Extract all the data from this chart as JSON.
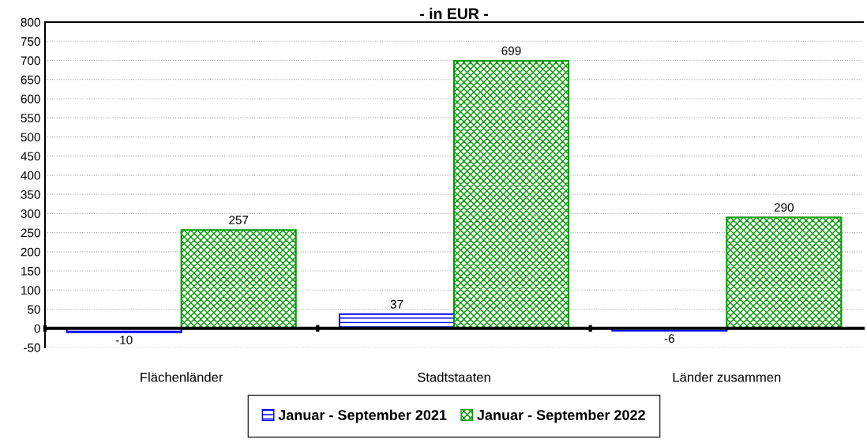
{
  "chart_data": {
    "type": "bar",
    "title": "- in EUR -",
    "categories": [
      "Flächenländer",
      "Stadtstaaten",
      "Länder zusammen"
    ],
    "series": [
      {
        "name": "Januar - September 2021",
        "color": "#0000ff",
        "values": [
          -10,
          37,
          -6
        ]
      },
      {
        "name": "Januar - September 2022",
        "color": "#009900",
        "values": [
          257,
          699,
          290
        ]
      }
    ],
    "ylim": [
      -50,
      800
    ],
    "yticks": [
      -50,
      0,
      50,
      100,
      150,
      200,
      250,
      300,
      350,
      400,
      450,
      500,
      550,
      600,
      650,
      700,
      750,
      800
    ],
    "grid": "y",
    "legend": "bottom",
    "data_labels": true
  }
}
